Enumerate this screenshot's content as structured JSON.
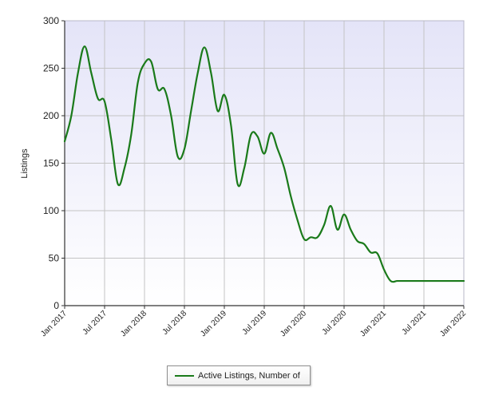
{
  "colors": {
    "series": "#1a7a1a",
    "plot_top": "#e4e4f8",
    "plot_bottom": "#ffffff",
    "grid": "#c4c4c4",
    "axis": "#333333"
  },
  "chart_data": {
    "type": "line",
    "title": "",
    "xlabel": "",
    "ylabel": "Listings",
    "ylim": [
      0,
      300
    ],
    "yticks": [
      0,
      50,
      100,
      150,
      200,
      250,
      300
    ],
    "xlim": [
      "2017-01",
      "2022-01"
    ],
    "xtick_labels": [
      "Jan 2017",
      "Jul 2017",
      "Jan 2018",
      "Jul 2018",
      "Jan 2019",
      "Jul 2019",
      "Jan 2020",
      "Jul 2020",
      "Jan 2021",
      "Jul 2021",
      "Jan 2022"
    ],
    "grid": true,
    "legend": {
      "position": "bottom-center"
    },
    "x": [
      "2017-01",
      "2017-02",
      "2017-03",
      "2017-04",
      "2017-05",
      "2017-06",
      "2017-07",
      "2017-08",
      "2017-09",
      "2017-10",
      "2017-11",
      "2017-12",
      "2018-01",
      "2018-02",
      "2018-03",
      "2018-04",
      "2018-05",
      "2018-06",
      "2018-07",
      "2018-08",
      "2018-09",
      "2018-10",
      "2018-11",
      "2018-12",
      "2019-01",
      "2019-02",
      "2019-03",
      "2019-04",
      "2019-05",
      "2019-06",
      "2019-07",
      "2019-08",
      "2019-09",
      "2019-10",
      "2019-11",
      "2019-12",
      "2020-01",
      "2020-02",
      "2020-03",
      "2020-04",
      "2020-05",
      "2020-06",
      "2020-07",
      "2020-08",
      "2020-09",
      "2020-10",
      "2020-11",
      "2020-12",
      "2021-01",
      "2021-02",
      "2021-03",
      "2021-04",
      "2021-05",
      "2021-06",
      "2021-07",
      "2021-08",
      "2021-09",
      "2021-10",
      "2021-11",
      "2021-12",
      "2022-01"
    ],
    "series": [
      {
        "name": "Active Listings, Number of",
        "values": [
          173,
          200,
          245,
          273,
          245,
          218,
          215,
          175,
          128,
          145,
          180,
          235,
          255,
          257,
          228,
          228,
          200,
          157,
          165,
          205,
          245,
          272,
          245,
          205,
          222,
          190,
          128,
          145,
          180,
          178,
          160,
          182,
          165,
          145,
          115,
          90,
          70,
          72,
          72,
          85,
          105,
          80,
          96,
          80,
          68,
          65,
          56,
          55,
          38,
          26,
          26,
          26,
          26,
          26,
          26,
          26,
          26,
          26,
          26,
          26,
          26
        ]
      }
    ]
  }
}
